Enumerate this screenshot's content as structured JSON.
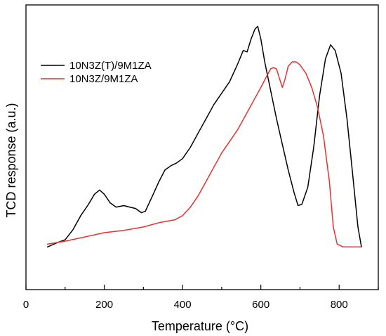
{
  "chart_data": {
    "type": "line",
    "xlabel": "Temperature (°C)",
    "ylabel": "TCD response (a.u.)",
    "xlim": [
      0,
      900
    ],
    "ylim": [
      0,
      100
    ],
    "x_ticks": [
      0,
      200,
      400,
      600,
      800
    ],
    "x_tick_labels": [
      "0",
      "200",
      "400",
      "600",
      "800"
    ],
    "y_tick_labels": [],
    "grid": false,
    "legend_position": "top-left",
    "series": [
      {
        "name": "10N3Z(T)/9M1ZA",
        "color": "#000000",
        "points": [
          [
            55,
            15
          ],
          [
            80,
            16.5
          ],
          [
            100,
            17.5
          ],
          [
            120,
            21
          ],
          [
            140,
            26
          ],
          [
            160,
            30
          ],
          [
            175,
            33.5
          ],
          [
            188,
            35
          ],
          [
            200,
            33.5
          ],
          [
            215,
            30.5
          ],
          [
            230,
            29
          ],
          [
            250,
            29.5
          ],
          [
            265,
            29
          ],
          [
            280,
            28.5
          ],
          [
            295,
            27
          ],
          [
            305,
            27.5
          ],
          [
            320,
            32
          ],
          [
            340,
            38
          ],
          [
            355,
            42
          ],
          [
            370,
            43.5
          ],
          [
            385,
            44.5
          ],
          [
            400,
            46
          ],
          [
            420,
            50
          ],
          [
            440,
            55
          ],
          [
            460,
            60
          ],
          [
            480,
            65
          ],
          [
            500,
            69
          ],
          [
            520,
            73
          ],
          [
            540,
            79
          ],
          [
            555,
            84
          ],
          [
            565,
            83.5
          ],
          [
            575,
            88
          ],
          [
            585,
            91.5
          ],
          [
            592,
            92.5
          ],
          [
            600,
            88
          ],
          [
            610,
            80
          ],
          [
            625,
            70
          ],
          [
            640,
            60
          ],
          [
            655,
            51
          ],
          [
            670,
            42
          ],
          [
            685,
            34
          ],
          [
            695,
            29.5
          ],
          [
            705,
            30
          ],
          [
            720,
            36
          ],
          [
            735,
            50
          ],
          [
            750,
            68
          ],
          [
            765,
            81
          ],
          [
            778,
            86
          ],
          [
            790,
            84
          ],
          [
            805,
            76
          ],
          [
            820,
            60
          ],
          [
            835,
            40
          ],
          [
            848,
            22
          ],
          [
            857,
            15
          ]
        ]
      },
      {
        "name": "10N3Z/9M1ZA",
        "color": "#e8302f",
        "points": [
          [
            55,
            16
          ],
          [
            100,
            17
          ],
          [
            150,
            18.5
          ],
          [
            200,
            20
          ],
          [
            250,
            20.8
          ],
          [
            300,
            22
          ],
          [
            340,
            23.5
          ],
          [
            380,
            24.5
          ],
          [
            400,
            26
          ],
          [
            420,
            29
          ],
          [
            440,
            33
          ],
          [
            460,
            38
          ],
          [
            480,
            43
          ],
          [
            500,
            48
          ],
          [
            520,
            52
          ],
          [
            540,
            56
          ],
          [
            560,
            61
          ],
          [
            580,
            66
          ],
          [
            600,
            71
          ],
          [
            615,
            75
          ],
          [
            625,
            77.5
          ],
          [
            632,
            78
          ],
          [
            640,
            77.5
          ],
          [
            648,
            74
          ],
          [
            655,
            71
          ],
          [
            662,
            74
          ],
          [
            670,
            78.5
          ],
          [
            680,
            80
          ],
          [
            690,
            80
          ],
          [
            700,
            79
          ],
          [
            715,
            76
          ],
          [
            730,
            71
          ],
          [
            745,
            64
          ],
          [
            760,
            54
          ],
          [
            775,
            38
          ],
          [
            785,
            22
          ],
          [
            795,
            16
          ],
          [
            810,
            15
          ],
          [
            830,
            15
          ],
          [
            855,
            15
          ]
        ]
      }
    ]
  }
}
